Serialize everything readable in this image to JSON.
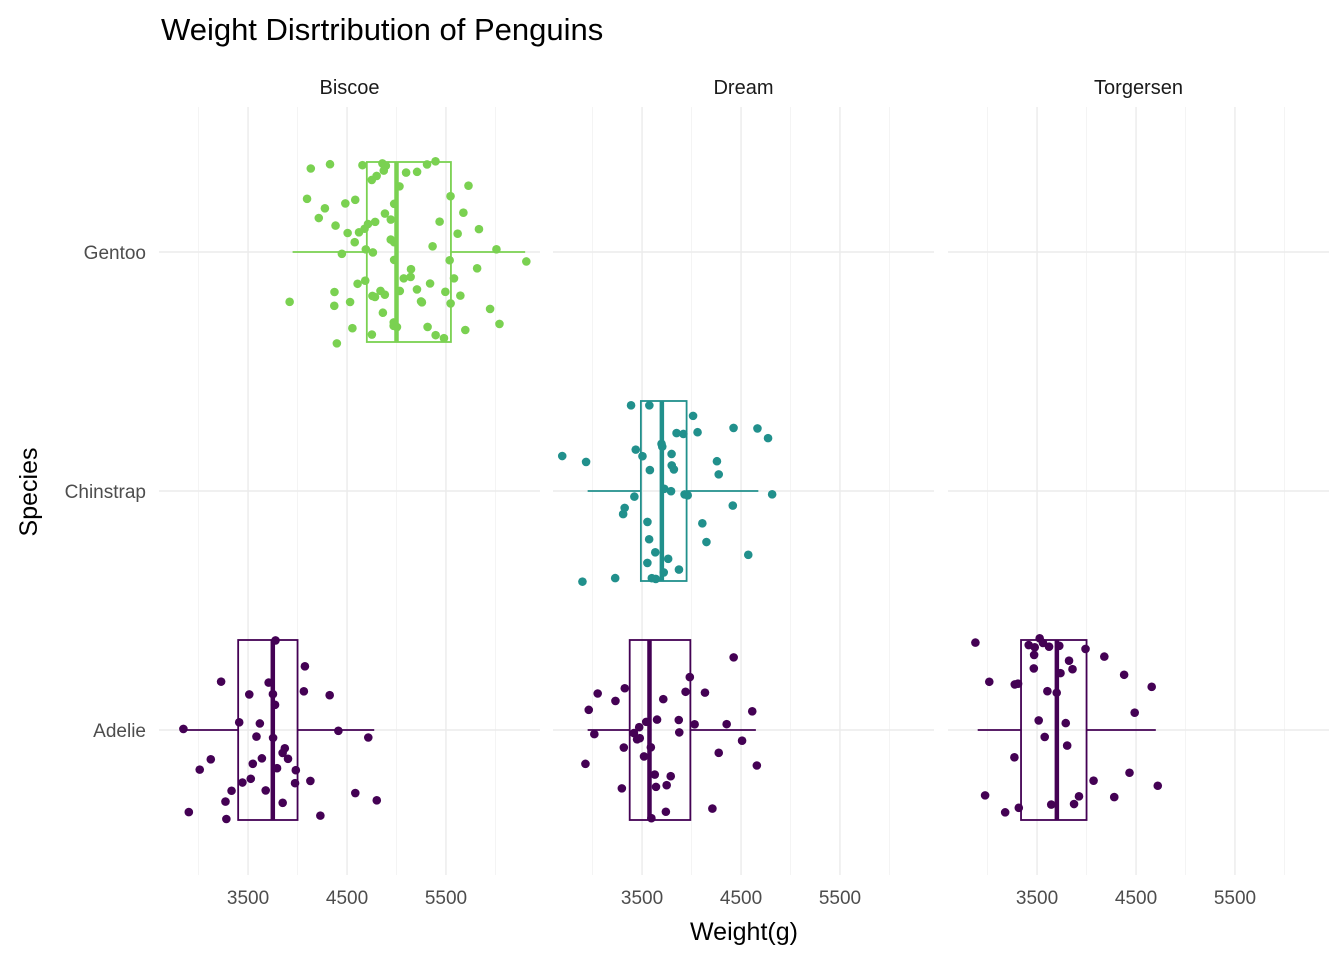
{
  "chart_data": {
    "type": "box",
    "title": "Weight Disrtribution of Penguins",
    "xlabel": "Weight(g)",
    "ylabel": "Species",
    "facets": [
      "Biscoe",
      "Dream",
      "Torgersen"
    ],
    "categories": [
      "Adelie",
      "Chinstrap",
      "Gentoo"
    ],
    "x_ticks": [
      3500,
      4500,
      5500
    ],
    "xlim": [
      2600,
      6450
    ],
    "grid": true,
    "legend": "none",
    "colors": {
      "Adelie": "#440154",
      "Chinstrap": "#21908C",
      "Gentoo": "#7AD151"
    },
    "boxes": [
      {
        "island": "Biscoe",
        "species": "Gentoo",
        "whisker_low": 3950,
        "q1": 4700,
        "median": 5000,
        "q3": 5550,
        "whisker_high": 6300,
        "n": 124
      },
      {
        "island": "Biscoe",
        "species": "Adelie",
        "whisker_low": 2850,
        "q1": 3400,
        "median": 3750,
        "q3": 4000,
        "whisker_high": 4775,
        "n": 44
      },
      {
        "island": "Dream",
        "species": "Chinstrap",
        "whisker_low": 2950,
        "q1": 3488,
        "median": 3700,
        "q3": 3950,
        "whisker_high": 4675,
        "n": 68
      },
      {
        "island": "Dream",
        "species": "Adelie",
        "whisker_low": 2950,
        "q1": 3375,
        "median": 3575,
        "q3": 3988,
        "whisker_high": 4650,
        "n": 56
      },
      {
        "island": "Torgersen",
        "species": "Adelie",
        "whisker_low": 2900,
        "q1": 3338,
        "median": 3700,
        "q3": 4000,
        "whisker_high": 4700,
        "n": 52
      }
    ],
    "points": [
      {
        "island": "Biscoe",
        "species": "Gentoo",
        "weights": [
          3950,
          4100,
          4200,
          4250,
          4300,
          4350,
          4400,
          4400,
          4450,
          4500,
          4500,
          4550,
          4550,
          4600,
          4600,
          4600,
          4650,
          4650,
          4650,
          4700,
          4700,
          4700,
          4750,
          4750,
          4750,
          4800,
          4800,
          4800,
          4850,
          4850,
          4850,
          4900,
          4900,
          4900,
          4925,
          4950,
          4950,
          4950,
          5000,
          5000,
          5000,
          5000,
          5050,
          5050,
          5100,
          5100,
          5150,
          5200,
          5200,
          5250,
          5250,
          5300,
          5300,
          5350,
          5400,
          5400,
          5450,
          5500,
          5500,
          5550,
          5550,
          5600,
          5600,
          5650,
          5700,
          5700,
          5750,
          5800,
          5850,
          5950,
          6000,
          6050,
          6300,
          4150,
          4375,
          4725,
          4875,
          5125,
          5350,
          5575
        ]
      },
      {
        "island": "Biscoe",
        "species": "Adelie",
        "weights": [
          2850,
          2900,
          3000,
          3150,
          3200,
          3250,
          3300,
          3350,
          3400,
          3450,
          3500,
          3550,
          3600,
          3600,
          3650,
          3700,
          3725,
          3750,
          3775,
          3800,
          3800,
          3850,
          3900,
          3900,
          3950,
          4000,
          4050,
          4100,
          4150,
          4250,
          4300,
          4400,
          4600,
          4775,
          4725,
          3550,
          3650,
          3850
        ]
      },
      {
        "island": "Dream",
        "species": "Chinstrap",
        "weights": [
          2700,
          2900,
          2950,
          3250,
          3300,
          3325,
          3400,
          3450,
          3450,
          3500,
          3525,
          3550,
          3600,
          3600,
          3650,
          3650,
          3675,
          3700,
          3700,
          3725,
          3750,
          3775,
          3800,
          3800,
          3800,
          3850,
          3900,
          3950,
          4000,
          4050,
          4100,
          4150,
          4250,
          4300,
          4400,
          4450,
          4550,
          4675,
          4800,
          4800,
          3575,
          3625,
          3875,
          3925
        ]
      },
      {
        "island": "Dream",
        "species": "Adelie",
        "weights": [
          2950,
          2975,
          3000,
          3050,
          3250,
          3300,
          3325,
          3350,
          3400,
          3425,
          3450,
          3500,
          3525,
          3550,
          3575,
          3600,
          3600,
          3650,
          3650,
          3700,
          3725,
          3750,
          3800,
          3850,
          3900,
          3950,
          4000,
          4050,
          4150,
          4200,
          4250,
          4350,
          4450,
          4500,
          4600,
          4650
        ]
      },
      {
        "island": "Torgersen",
        "species": "Adelie",
        "weights": [
          2900,
          2950,
          3000,
          3200,
          3250,
          3275,
          3300,
          3325,
          3400,
          3450,
          3450,
          3500,
          3500,
          3550,
          3600,
          3600,
          3650,
          3700,
          3700,
          3750,
          3800,
          3800,
          3850,
          3900,
          3950,
          4000,
          4100,
          4200,
          4300,
          4350,
          4450,
          4500,
          4675,
          4700,
          3475,
          3625,
          3775
        ]
      }
    ]
  }
}
